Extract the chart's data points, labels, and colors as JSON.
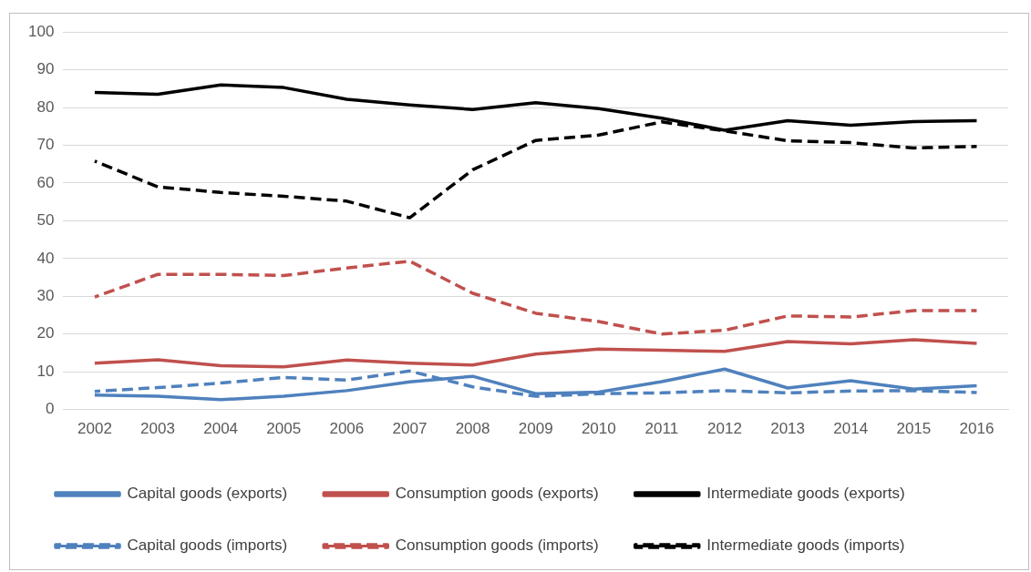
{
  "chart_data": {
    "type": "line",
    "categories": [
      "2002",
      "2003",
      "2004",
      "2005",
      "2006",
      "2007",
      "2008",
      "2009",
      "2010",
      "2011",
      "2012",
      "2013",
      "2014",
      "2015",
      "2016"
    ],
    "series": [
      {
        "name": "Capital goods (exports)",
        "color": "#4f81bd",
        "line_style": "solid",
        "values": [
          3.8,
          3.5,
          2.6,
          3.5,
          5,
          7.3,
          8.8,
          4.2,
          4.6,
          7.4,
          10.7,
          5.7,
          7.6,
          5.4,
          6.3
        ]
      },
      {
        "name": "Consumption goods (exports)",
        "color": "#c0504d",
        "line_style": "solid",
        "values": [
          12.3,
          13.2,
          11.6,
          11.3,
          13.1,
          12.3,
          11.8,
          14.7,
          16,
          15.7,
          15.4,
          18,
          17.4,
          18.5,
          17.5
        ]
      },
      {
        "name": "Intermediate goods (exports)",
        "color": "#000000",
        "line_style": "solid",
        "values": [
          84,
          83.5,
          86,
          85.3,
          82.2,
          80.7,
          79.5,
          81.3,
          79.7,
          77.2,
          74,
          76.5,
          75.3,
          76.3,
          76.5
        ]
      },
      {
        "name": "Capital goods (imports)",
        "color": "#4f81bd",
        "line_style": "dashed",
        "values": [
          4.8,
          5.8,
          7,
          8.5,
          7.8,
          10.2,
          6,
          3.5,
          4.2,
          4.4,
          5,
          4.4,
          4.9,
          5,
          4.5
        ]
      },
      {
        "name": "Consumption goods (imports)",
        "color": "#c0504d",
        "line_style": "dashed",
        "values": [
          29.8,
          35.8,
          35.8,
          35.5,
          37.5,
          39.3,
          30.8,
          25.5,
          23.3,
          20,
          21,
          24.8,
          24.5,
          26.2,
          26.2
        ]
      },
      {
        "name": "Intermediate goods (imports)",
        "color": "#000000",
        "line_style": "dashed",
        "values": [
          65.8,
          59,
          57.5,
          56.5,
          55.2,
          50.8,
          63.5,
          71.3,
          72.7,
          76.2,
          73.8,
          71.2,
          70.7,
          69.3,
          69.7
        ]
      }
    ],
    "ylim": [
      0,
      100
    ],
    "yticks": [
      0,
      10,
      20,
      30,
      40,
      50,
      60,
      70,
      80,
      90,
      100
    ],
    "grid": "y",
    "legend": "bottom",
    "marker": "none"
  }
}
